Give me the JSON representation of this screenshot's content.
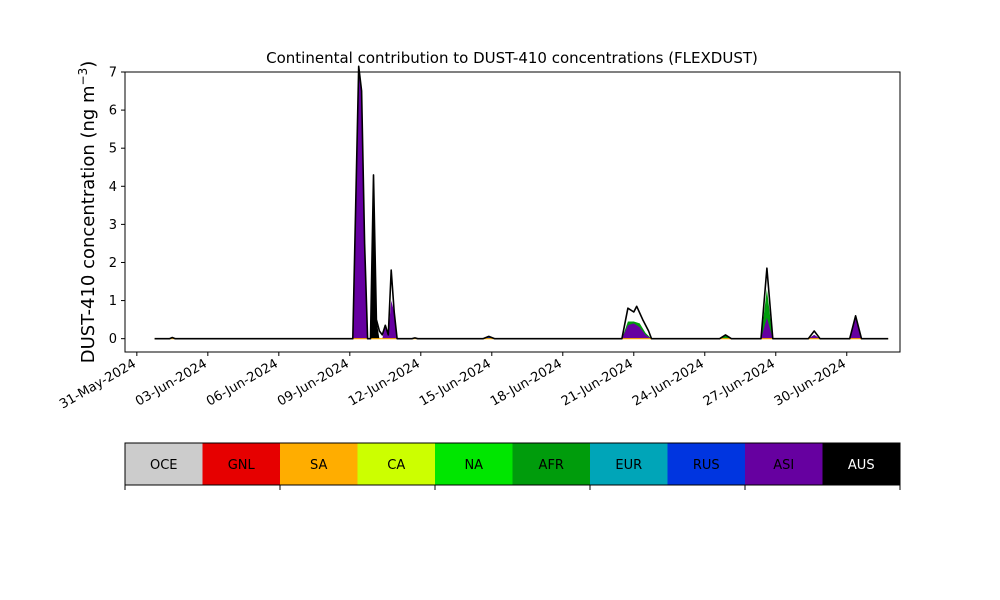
{
  "chart_data": {
    "type": "area",
    "stacked": true,
    "title": "Continental contribution to DUST-410 concentrations (FLEXDUST)",
    "ylabel_main": "DUST-410 concentration (ng m",
    "ylabel_sup": "−3",
    "ylabel_close": ")",
    "xlabel": "",
    "ylim": [
      -0.35,
      7.0
    ],
    "xlim": [
      "2024-05-30T12:00",
      "2024-07-02T06:00"
    ],
    "yticks": [
      0,
      1,
      2,
      3,
      4,
      5,
      6,
      7
    ],
    "xticks": [
      "31-May-2024",
      "03-Jun-2024",
      "06-Jun-2024",
      "09-Jun-2024",
      "12-Jun-2024",
      "15-Jun-2024",
      "18-Jun-2024",
      "21-Jun-2024",
      "24-Jun-2024",
      "27-Jun-2024",
      "30-Jun-2024"
    ],
    "grid": false,
    "series": [
      {
        "name": "OCE",
        "color": "#cccccc",
        "values": [
          [
            0,
            0
          ]
        ]
      },
      {
        "name": "GNL",
        "color": "#e60000",
        "values": [
          [
            0,
            0
          ]
        ]
      },
      {
        "name": "SA",
        "color": "#ffad00",
        "values": [
          [
            0,
            0
          ]
        ]
      },
      {
        "name": "CA",
        "color": "#ccff00",
        "values": [
          [
            0,
            0
          ]
        ]
      },
      {
        "name": "NA",
        "color": "#00e600",
        "values": [
          [
            0,
            0
          ]
        ]
      },
      {
        "name": "AFR",
        "color": "#009c0c",
        "values": [
          [
            "2024-06-20T12:00",
            0
          ],
          [
            "2024-06-20T18:00",
            0.45
          ],
          [
            "2024-06-21T00:00",
            0.45
          ],
          [
            "2024-06-21T06:00",
            0.4
          ],
          [
            "2024-06-21T12:00",
            0.15
          ],
          [
            "2024-06-21T18:00",
            0
          ],
          [
            "2024-06-24T15:00",
            0
          ],
          [
            "2024-06-24T21:00",
            0.08
          ],
          [
            "2024-06-25T03:00",
            0
          ],
          [
            "2024-06-26T09:00",
            0
          ],
          [
            "2024-06-26T15:00",
            1.3
          ],
          [
            "2024-06-26T21:00",
            0
          ],
          [
            "2024-06-28T09:00",
            0
          ],
          [
            "2024-06-28T15:00",
            0.1
          ],
          [
            "2024-06-28T21:00",
            0
          ]
        ]
      },
      {
        "name": "EUR",
        "color": "#00a5b8",
        "values": [
          [
            0,
            0
          ]
        ]
      },
      {
        "name": "RUS",
        "color": "#0035e0",
        "values": [
          [
            "2024-06-14T15:00",
            0
          ],
          [
            "2024-06-14T21:00",
            0.06
          ],
          [
            "2024-06-15T03:00",
            0
          ]
        ]
      },
      {
        "name": "ASI",
        "color": "#6600a0",
        "values": [
          [
            "2024-06-09T03:00",
            0
          ],
          [
            "2024-06-09T06:00",
            3.5
          ],
          [
            "2024-06-09T09:00",
            7.15
          ],
          [
            "2024-06-09T12:00",
            6.5
          ],
          [
            "2024-06-09T15:00",
            2.5
          ],
          [
            "2024-06-09T18:00",
            0
          ],
          [
            "2024-06-10T09:00",
            0
          ],
          [
            "2024-06-10T12:00",
            0.35
          ],
          [
            "2024-06-10T15:00",
            0.1
          ],
          [
            "2024-06-10T18:00",
            1.0
          ],
          [
            "2024-06-10T21:00",
            0.7
          ],
          [
            "2024-06-11T00:00",
            0
          ],
          [
            "2024-06-20T12:00",
            0
          ],
          [
            "2024-06-20T18:00",
            0.35
          ],
          [
            "2024-06-21T00:00",
            0.4
          ],
          [
            "2024-06-21T06:00",
            0.3
          ],
          [
            "2024-06-21T12:00",
            0.1
          ],
          [
            "2024-06-21T18:00",
            0
          ],
          [
            "2024-06-26T09:00",
            0
          ],
          [
            "2024-06-26T15:00",
            0.55
          ],
          [
            "2024-06-26T21:00",
            0
          ],
          [
            "2024-06-28T09:00",
            0
          ],
          [
            "2024-06-28T15:00",
            0.1
          ],
          [
            "2024-06-28T21:00",
            0
          ],
          [
            "2024-06-30T03:00",
            0
          ],
          [
            "2024-06-30T09:00",
            0.6
          ],
          [
            "2024-06-30T15:00",
            0
          ]
        ]
      },
      {
        "name": "AUS",
        "color": "#000000",
        "values": [
          [
            "2024-06-09T21:00",
            0
          ],
          [
            "2024-06-10T00:00",
            4.3
          ],
          [
            "2024-06-10T03:00",
            0.5
          ],
          [
            "2024-06-10T06:00",
            0
          ]
        ]
      }
    ],
    "total_line": {
      "color": "#000000",
      "values": [
        [
          "2024-05-31T18:00",
          0
        ],
        [
          "2024-06-01T09:00",
          0
        ],
        [
          "2024-06-01T12:00",
          0.03
        ],
        [
          "2024-06-01T15:00",
          0
        ],
        [
          "2024-06-09T03:00",
          0
        ],
        [
          "2024-06-09T06:00",
          3.5
        ],
        [
          "2024-06-09T09:00",
          7.15
        ],
        [
          "2024-06-09T12:00",
          6.5
        ],
        [
          "2024-06-09T15:00",
          2.5
        ],
        [
          "2024-06-09T18:00",
          0
        ],
        [
          "2024-06-09T21:00",
          0
        ],
        [
          "2024-06-10T00:00",
          4.3
        ],
        [
          "2024-06-10T03:00",
          0.5
        ],
        [
          "2024-06-10T06:00",
          0.2
        ],
        [
          "2024-06-10T09:00",
          0.1
        ],
        [
          "2024-06-10T12:00",
          0.35
        ],
        [
          "2024-06-10T15:00",
          0.1
        ],
        [
          "2024-06-10T18:00",
          1.8
        ],
        [
          "2024-06-10T21:00",
          0.7
        ],
        [
          "2024-06-11T00:00",
          0
        ],
        [
          "2024-06-11T15:00",
          0
        ],
        [
          "2024-06-11T18:00",
          0.02
        ],
        [
          "2024-06-11T21:00",
          0
        ],
        [
          "2024-06-14T15:00",
          0
        ],
        [
          "2024-06-14T21:00",
          0.06
        ],
        [
          "2024-06-15T03:00",
          0
        ],
        [
          "2024-06-20T12:00",
          0
        ],
        [
          "2024-06-20T18:00",
          0.8
        ],
        [
          "2024-06-21T00:00",
          0.7
        ],
        [
          "2024-06-21T03:00",
          0.85
        ],
        [
          "2024-06-21T09:00",
          0.5
        ],
        [
          "2024-06-21T15:00",
          0.2
        ],
        [
          "2024-06-21T18:00",
          0
        ],
        [
          "2024-06-24T15:00",
          0
        ],
        [
          "2024-06-24T21:00",
          0.1
        ],
        [
          "2024-06-25T03:00",
          0
        ],
        [
          "2024-06-26T09:00",
          0
        ],
        [
          "2024-06-26T15:00",
          1.85
        ],
        [
          "2024-06-26T21:00",
          0
        ],
        [
          "2024-06-28T09:00",
          0
        ],
        [
          "2024-06-28T15:00",
          0.2
        ],
        [
          "2024-06-28T21:00",
          0
        ],
        [
          "2024-06-30T03:00",
          0
        ],
        [
          "2024-06-30T09:00",
          0.6
        ],
        [
          "2024-06-30T15:00",
          0
        ],
        [
          "2024-07-01T18:00",
          0
        ]
      ]
    },
    "baseline_line": {
      "color": "#ffad00",
      "from": "2024-05-31T18:00",
      "to": "2024-07-01T18:00",
      "value": 0
    }
  },
  "legend": {
    "placement": "bottom",
    "entries": [
      {
        "label": "OCE",
        "color": "#cccccc",
        "text_color": "#000000"
      },
      {
        "label": "GNL",
        "color": "#e60000",
        "text_color": "#000000"
      },
      {
        "label": "SA",
        "color": "#ffad00",
        "text_color": "#000000"
      },
      {
        "label": "CA",
        "color": "#ccff00",
        "text_color": "#000000"
      },
      {
        "label": "NA",
        "color": "#00e600",
        "text_color": "#000000"
      },
      {
        "label": "AFR",
        "color": "#009c0c",
        "text_color": "#000000"
      },
      {
        "label": "EUR",
        "color": "#00a5b8",
        "text_color": "#000000"
      },
      {
        "label": "RUS",
        "color": "#0035e0",
        "text_color": "#000000"
      },
      {
        "label": "ASI",
        "color": "#6600a0",
        "text_color": "#000000"
      },
      {
        "label": "AUS",
        "color": "#000000",
        "text_color": "#ffffff"
      }
    ]
  }
}
